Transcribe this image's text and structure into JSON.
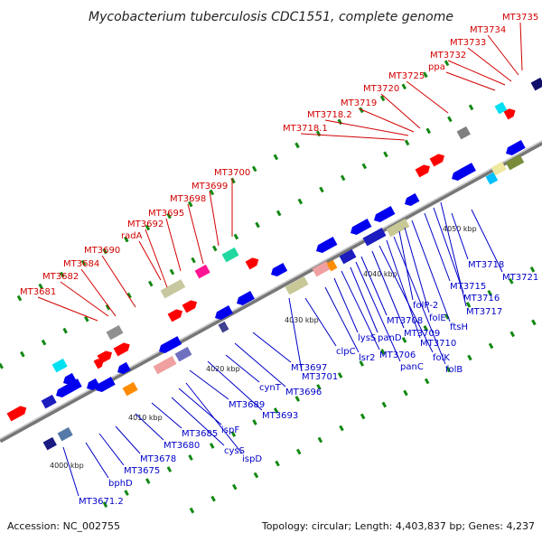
{
  "title": "Mycobacterium tuberculosis CDC1551, complete genome",
  "footer": {
    "accession": "Accession: NC_002755",
    "summary": "Topology: circular; Length: 4,403,837 bp; Genes: 4,237"
  },
  "scale_ticks": [
    "4000 kbp",
    "4010 kbp",
    "4020 kbp",
    "4030 kbp",
    "4040 kbp",
    "4050 kbp"
  ],
  "colors": {
    "forward_label": "#d20000",
    "reverse_label": "#0000c8",
    "forward_gene": "#ff0000",
    "reverse_gene": "#0000ee",
    "backbone": "#8a8a8a",
    "tick_green": "#118811"
  },
  "top_labels": [
    "MT3681",
    "MT3682",
    "MT3684",
    "MT3690",
    "radA",
    "MT3692",
    "MT3695",
    "MT3698",
    "MT3699",
    "MT3700",
    "MT3718.1",
    "MT3718.2",
    "MT3719",
    "MT3720",
    "MT3725",
    "ppa",
    "MT3732",
    "MT3733",
    "MT3734",
    "MT3735"
  ],
  "bottom_labels": [
    "MT3671.2",
    "bphD",
    "MT3675",
    "MT3678",
    "MT3680",
    "MT3685",
    "cysS",
    "ispF",
    "ispD",
    "MT3689",
    "MT3693",
    "cynT",
    "MT3696",
    "MT3697",
    "clpC",
    "MT3701",
    "lsr2",
    "lysS",
    "MT3706",
    "panD",
    "panC",
    "MT3708",
    "MT3709",
    "folK",
    "MT3710",
    "folB",
    "folP-2",
    "folE",
    "ftsH",
    "MT3715",
    "MT3716",
    "MT3717",
    "MT3718",
    "MT3721"
  ]
}
